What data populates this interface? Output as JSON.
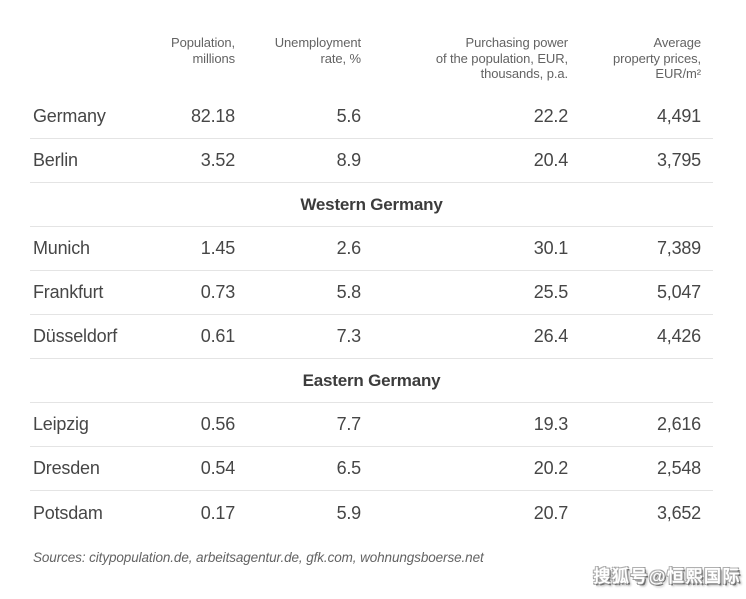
{
  "colors": {
    "body_text": "#464646",
    "header_text": "#636363",
    "section_text": "#3c3c3c",
    "divider": "#e4e4e4",
    "background": "#ffffff"
  },
  "table": {
    "headers": {
      "city": "",
      "population": {
        "l1": "Population,",
        "l2": "millions"
      },
      "unemployment": {
        "l1": "Unemployment",
        "l2": "rate, %"
      },
      "purchasing_power": {
        "l1": "Purchasing power",
        "l2": "of the population, EUR,",
        "l3": "thousands, p.a."
      },
      "property_prices": {
        "l1": "Average",
        "l2": "property prices,",
        "l3": "EUR/m²"
      }
    },
    "national_rows": [
      {
        "name": "Germany",
        "population": "82.18",
        "unemployment": "5.6",
        "purchasing_power": "22.2",
        "property_price": "4,491"
      },
      {
        "name": "Berlin",
        "population": "3.52",
        "unemployment": "8.9",
        "purchasing_power": "20.4",
        "property_price": "3,795"
      }
    ],
    "sections": [
      {
        "title": "Western Germany",
        "rows": [
          {
            "name": "Munich",
            "population": "1.45",
            "unemployment": "2.6",
            "purchasing_power": "30.1",
            "property_price": "7,389"
          },
          {
            "name": "Frankfurt",
            "population": "0.73",
            "unemployment": "5.8",
            "purchasing_power": "25.5",
            "property_price": "5,047"
          },
          {
            "name": "Düsseldorf",
            "population": "0.61",
            "unemployment": "7.3",
            "purchasing_power": "26.4",
            "property_price": "4,426"
          }
        ]
      },
      {
        "title": "Eastern Germany",
        "rows": [
          {
            "name": "Leipzig",
            "population": "0.56",
            "unemployment": "7.7",
            "purchasing_power": "19.3",
            "property_price": "2,616"
          },
          {
            "name": "Dresden",
            "population": "0.54",
            "unemployment": "6.5",
            "purchasing_power": "20.2",
            "property_price": "2,548"
          },
          {
            "name": "Potsdam",
            "population": "0.17",
            "unemployment": "5.9",
            "purchasing_power": "20.7",
            "property_price": "3,652"
          }
        ]
      }
    ]
  },
  "footer": {
    "sources": "Sources: citypopulation.de, arbeitsagentur.de, gfk.com, wohnungsboerse.net"
  },
  "watermark": {
    "text": "搜狐号@恒熙国际"
  },
  "chart_data": {
    "type": "table",
    "columns": [
      "",
      "Population, millions",
      "Unemployment rate, %",
      "Purchasing power of the population, EUR, thousands, p.a.",
      "Average property prices, EUR/m²"
    ],
    "sections": [
      {
        "section": "",
        "rows": [
          [
            "Germany",
            82.18,
            5.6,
            22.2,
            4491
          ],
          [
            "Berlin",
            3.52,
            8.9,
            20.4,
            3795
          ]
        ]
      },
      {
        "section": "Western Germany",
        "rows": [
          [
            "Munich",
            1.45,
            2.6,
            30.1,
            7389
          ],
          [
            "Frankfurt",
            0.73,
            5.8,
            25.5,
            5047
          ],
          [
            "Düsseldorf",
            0.61,
            7.3,
            26.4,
            4426
          ]
        ]
      },
      {
        "section": "Eastern Germany",
        "rows": [
          [
            "Leipzig",
            0.56,
            7.7,
            19.3,
            2616
          ],
          [
            "Dresden",
            0.54,
            6.5,
            20.2,
            2548
          ],
          [
            "Potsdam",
            0.17,
            5.9,
            20.7,
            3652
          ]
        ]
      }
    ],
    "source_note": "Sources: citypopulation.de, arbeitsagentur.de, gfk.com, wohnungsboerse.net"
  }
}
